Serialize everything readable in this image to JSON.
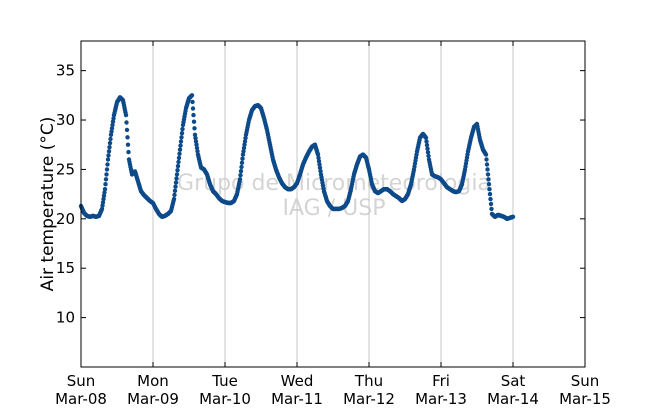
{
  "chart_data": {
    "type": "scatter",
    "title": "",
    "ylabel": "Air temperature (°C)",
    "xlabel": "",
    "ylim": [
      5,
      38
    ],
    "xlim": [
      "2015-03-08 00:00",
      "2015-03-15 00:00"
    ],
    "yticks": [
      10,
      15,
      20,
      25,
      30,
      35
    ],
    "xticks": [
      {
        "top": "Sun",
        "bottom": "Mar-08"
      },
      {
        "top": "Mon",
        "bottom": "Mar-09"
      },
      {
        "top": "Tue",
        "bottom": "Mar-10"
      },
      {
        "top": "Wed",
        "bottom": "Mar-11"
      },
      {
        "top": "Thu",
        "bottom": "Mar-12"
      },
      {
        "top": "Fri",
        "bottom": "Mar-13"
      },
      {
        "top": "Sat",
        "bottom": "Mar-14"
      },
      {
        "top": "Sun",
        "bottom": "Mar-15"
      }
    ],
    "grid": "vertical",
    "watermark": [
      "Grupo de Micrometeorologia",
      "IAG / USP"
    ],
    "marker_color": "#0d4a8a",
    "series": [
      {
        "points": [
          [
            "2015-03-08 00:00",
            21.3
          ],
          [
            "2015-03-08 01:00",
            20.6
          ],
          [
            "2015-03-08 02:00",
            20.3
          ],
          [
            "2015-03-08 03:00",
            20.2
          ],
          [
            "2015-03-08 04:00",
            20.3
          ],
          [
            "2015-03-08 05:00",
            20.2
          ],
          [
            "2015-03-08 06:00",
            20.3
          ],
          [
            "2015-03-08 07:00",
            21.0
          ],
          [
            "2015-03-08 08:00",
            23.0
          ],
          [
            "2015-03-08 09:00",
            26.0
          ],
          [
            "2015-03-08 10:00",
            28.5
          ],
          [
            "2015-03-08 11:00",
            30.5
          ],
          [
            "2015-03-08 12:00",
            31.8
          ],
          [
            "2015-03-08 13:00",
            32.3
          ],
          [
            "2015-03-08 14:00",
            32.0
          ],
          [
            "2015-03-08 15:00",
            30.5
          ],
          [
            "2015-03-08 16:00",
            26.0
          ],
          [
            "2015-03-08 17:00",
            24.5
          ],
          [
            "2015-03-08 18:00",
            24.8
          ],
          [
            "2015-03-08 19:00",
            23.8
          ],
          [
            "2015-03-08 20:00",
            22.8
          ],
          [
            "2015-03-08 21:00",
            22.4
          ],
          [
            "2015-03-08 22:00",
            22.1
          ],
          [
            "2015-03-08 23:00",
            21.8
          ],
          [
            "2015-03-09 00:00",
            21.6
          ],
          [
            "2015-03-09 01:00",
            21.0
          ],
          [
            "2015-03-09 02:00",
            20.5
          ],
          [
            "2015-03-09 03:00",
            20.2
          ],
          [
            "2015-03-09 04:00",
            20.3
          ],
          [
            "2015-03-09 05:00",
            20.5
          ],
          [
            "2015-03-09 06:00",
            20.8
          ],
          [
            "2015-03-09 07:00",
            22.0
          ],
          [
            "2015-03-09 08:00",
            24.5
          ],
          [
            "2015-03-09 09:00",
            27.0
          ],
          [
            "2015-03-09 10:00",
            29.5
          ],
          [
            "2015-03-09 11:00",
            31.2
          ],
          [
            "2015-03-09 12:00",
            32.2
          ],
          [
            "2015-03-09 13:00",
            32.5
          ],
          [
            "2015-03-09 14:00",
            28.5
          ],
          [
            "2015-03-09 15:00",
            26.5
          ],
          [
            "2015-03-09 16:00",
            25.2
          ],
          [
            "2015-03-09 17:00",
            25.0
          ],
          [
            "2015-03-09 18:00",
            24.5
          ],
          [
            "2015-03-09 19:00",
            23.5
          ],
          [
            "2015-03-09 20:00",
            22.8
          ],
          [
            "2015-03-09 21:00",
            22.5
          ],
          [
            "2015-03-09 22:00",
            22.1
          ],
          [
            "2015-03-09 23:00",
            21.8
          ],
          [
            "2015-03-10 00:00",
            21.7
          ],
          [
            "2015-03-10 01:00",
            21.6
          ],
          [
            "2015-03-10 02:00",
            21.6
          ],
          [
            "2015-03-10 03:00",
            21.8
          ],
          [
            "2015-03-10 04:00",
            22.5
          ],
          [
            "2015-03-10 05:00",
            24.0
          ],
          [
            "2015-03-10 06:00",
            26.5
          ],
          [
            "2015-03-10 07:00",
            28.5
          ],
          [
            "2015-03-10 08:00",
            30.0
          ],
          [
            "2015-03-10 09:00",
            31.0
          ],
          [
            "2015-03-10 10:00",
            31.4
          ],
          [
            "2015-03-10 11:00",
            31.5
          ],
          [
            "2015-03-10 12:00",
            31.2
          ],
          [
            "2015-03-10 13:00",
            30.2
          ],
          [
            "2015-03-10 14:00",
            29.0
          ],
          [
            "2015-03-10 15:00",
            27.5
          ],
          [
            "2015-03-10 16:00",
            26.0
          ],
          [
            "2015-03-10 17:00",
            25.0
          ],
          [
            "2015-03-10 18:00",
            24.2
          ],
          [
            "2015-03-10 19:00",
            23.6
          ],
          [
            "2015-03-10 20:00",
            23.2
          ],
          [
            "2015-03-10 21:00",
            23.0
          ],
          [
            "2015-03-10 22:00",
            23.0
          ],
          [
            "2015-03-10 23:00",
            23.2
          ],
          [
            "2015-03-11 00:00",
            23.6
          ],
          [
            "2015-03-11 01:00",
            24.5
          ],
          [
            "2015-03-11 02:00",
            25.5
          ],
          [
            "2015-03-11 03:00",
            26.2
          ],
          [
            "2015-03-11 04:00",
            26.8
          ],
          [
            "2015-03-11 05:00",
            27.3
          ],
          [
            "2015-03-11 06:00",
            27.5
          ],
          [
            "2015-03-11 07:00",
            26.5
          ],
          [
            "2015-03-11 08:00",
            24.5
          ],
          [
            "2015-03-11 09:00",
            22.8
          ],
          [
            "2015-03-11 10:00",
            21.8
          ],
          [
            "2015-03-11 11:00",
            21.3
          ],
          [
            "2015-03-11 12:00",
            21.0
          ],
          [
            "2015-03-11 13:00",
            21.0
          ],
          [
            "2015-03-11 14:00",
            21.0
          ],
          [
            "2015-03-11 15:00",
            21.1
          ],
          [
            "2015-03-11 16:00",
            21.3
          ],
          [
            "2015-03-11 17:00",
            21.8
          ],
          [
            "2015-03-11 18:00",
            23.0
          ],
          [
            "2015-03-11 19:00",
            24.5
          ],
          [
            "2015-03-11 20:00",
            25.5
          ],
          [
            "2015-03-11 21:00",
            26.3
          ],
          [
            "2015-03-11 22:00",
            26.5
          ],
          [
            "2015-03-11 23:00",
            26.2
          ],
          [
            "2015-03-12 00:00",
            25.0
          ],
          [
            "2015-03-12 01:00",
            23.5
          ],
          [
            "2015-03-12 02:00",
            22.8
          ],
          [
            "2015-03-12 03:00",
            22.6
          ],
          [
            "2015-03-12 04:00",
            22.8
          ],
          [
            "2015-03-12 05:00",
            23.0
          ],
          [
            "2015-03-12 06:00",
            23.0
          ],
          [
            "2015-03-12 07:00",
            22.8
          ],
          [
            "2015-03-12 08:00",
            22.5
          ],
          [
            "2015-03-12 09:00",
            22.3
          ],
          [
            "2015-03-12 10:00",
            22.1
          ],
          [
            "2015-03-12 11:00",
            21.8
          ],
          [
            "2015-03-12 12:00",
            22.0
          ],
          [
            "2015-03-12 13:00",
            22.5
          ],
          [
            "2015-03-12 14:00",
            23.5
          ],
          [
            "2015-03-12 15:00",
            25.0
          ],
          [
            "2015-03-12 16:00",
            26.8
          ],
          [
            "2015-03-12 17:00",
            28.2
          ],
          [
            "2015-03-12 18:00",
            28.6
          ],
          [
            "2015-03-12 19:00",
            28.2
          ],
          [
            "2015-03-12 20:00",
            26.0
          ],
          [
            "2015-03-12 21:00",
            24.5
          ],
          [
            "2015-03-12 22:00",
            24.3
          ],
          [
            "2015-03-12 23:00",
            24.2
          ],
          [
            "2015-03-13 00:00",
            24.0
          ],
          [
            "2015-03-13 01:00",
            23.6
          ],
          [
            "2015-03-13 02:00",
            23.2
          ],
          [
            "2015-03-13 03:00",
            23.0
          ],
          [
            "2015-03-13 04:00",
            22.8
          ],
          [
            "2015-03-13 05:00",
            22.7
          ],
          [
            "2015-03-13 06:00",
            22.8
          ],
          [
            "2015-03-13 07:00",
            23.5
          ],
          [
            "2015-03-13 08:00",
            25.0
          ],
          [
            "2015-03-13 09:00",
            26.8
          ],
          [
            "2015-03-13 10:00",
            28.2
          ],
          [
            "2015-03-13 11:00",
            29.3
          ],
          [
            "2015-03-13 12:00",
            29.6
          ],
          [
            "2015-03-13 13:00",
            28.0
          ],
          [
            "2015-03-13 14:00",
            27.0
          ],
          [
            "2015-03-13 15:00",
            26.5
          ],
          [
            "2015-03-13 16:00",
            23.5
          ],
          [
            "2015-03-13 17:00",
            20.5
          ],
          [
            "2015-03-13 18:00",
            20.2
          ],
          [
            "2015-03-13 19:00",
            20.4
          ],
          [
            "2015-03-13 20:00",
            20.3
          ],
          [
            "2015-03-13 21:00",
            20.2
          ],
          [
            "2015-03-13 22:00",
            20.0
          ],
          [
            "2015-03-13 23:00",
            20.1
          ],
          [
            "2015-03-14 00:00",
            20.2
          ]
        ]
      }
    ]
  }
}
